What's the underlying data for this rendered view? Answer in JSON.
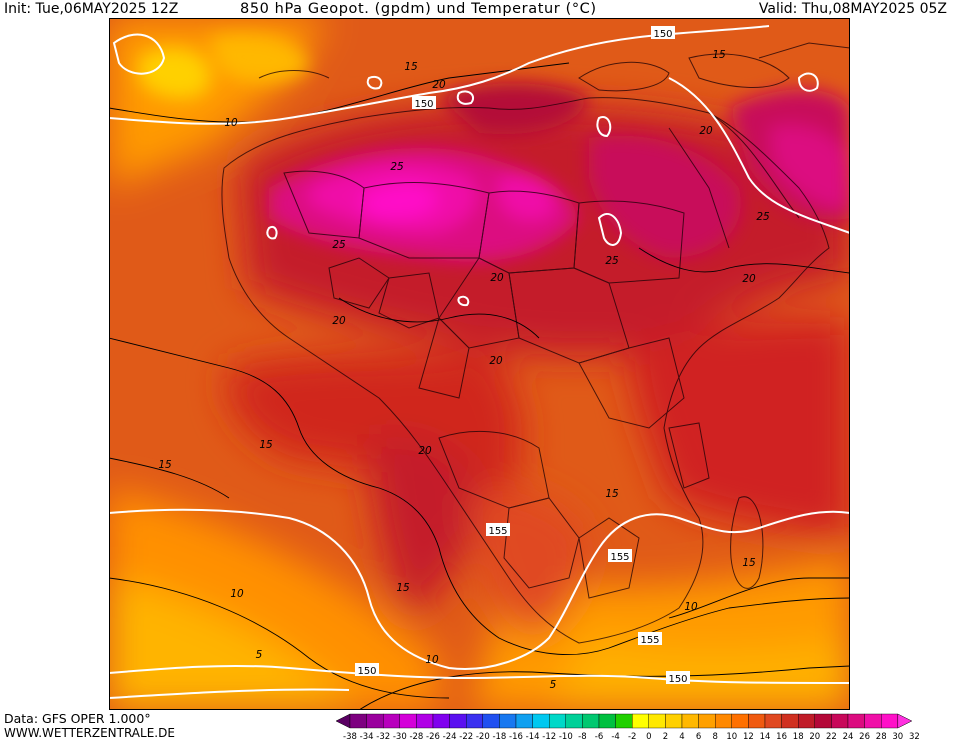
{
  "header": {
    "init": "Init: Tue,06MAY2025 12Z",
    "title": "850 hPa Geopot. (gpdm) und Temperatur (°C)",
    "valid": "Valid: Thu,08MAY2025 05Z"
  },
  "footer": {
    "data_source": "Data: GFS OPER 1.000°",
    "website": "WWW.WETTERZENTRALE.DE"
  },
  "colors": {
    "geopotential_contour": "#ffffff",
    "temperature_contour": "#000000",
    "label_box": "#ffffff"
  },
  "map": {
    "geopotential_labels": [
      "150",
      "150",
      "155",
      "155",
      "155",
      "150",
      "150"
    ],
    "temperature_labels": [
      "10",
      "15",
      "20",
      "25",
      "25",
      "25",
      "20",
      "20",
      "20",
      "25",
      "20",
      "20",
      "15",
      "15",
      "20",
      "15",
      "15",
      "15",
      "10",
      "10",
      "15",
      "10",
      "5",
      "5"
    ]
  },
  "legend": {
    "ticks": [
      "-38",
      "-34",
      "-32",
      "-30",
      "-28",
      "-26",
      "-24",
      "-22",
      "-20",
      "-18",
      "-16",
      "-14",
      "-12",
      "-10",
      "-8",
      "-6",
      "-4",
      "-2",
      "0",
      "2",
      "4",
      "6",
      "8",
      "10",
      "12",
      "14",
      "16",
      "18",
      "20",
      "22",
      "24",
      "26",
      "28",
      "30",
      "32"
    ],
    "colors": [
      "#5a0063",
      "#7d0080",
      "#9a009e",
      "#b800bd",
      "#d400d9",
      "#b000e6",
      "#8000ee",
      "#5a10f0",
      "#3a30f0",
      "#2050f0",
      "#1878f0",
      "#10a0f0",
      "#00c8f0",
      "#00d8c8",
      "#00d098",
      "#00c870",
      "#00c040",
      "#20d000",
      "#ffff00",
      "#ffe800",
      "#ffd000",
      "#ffb800",
      "#ffa000",
      "#ff8800",
      "#ff7000",
      "#f05a10",
      "#e04820",
      "#d03020",
      "#c01c28",
      "#b40838",
      "#c8085a",
      "#dc0c80",
      "#f010a8",
      "#ff10c8",
      "#ff30e0"
    ]
  }
}
